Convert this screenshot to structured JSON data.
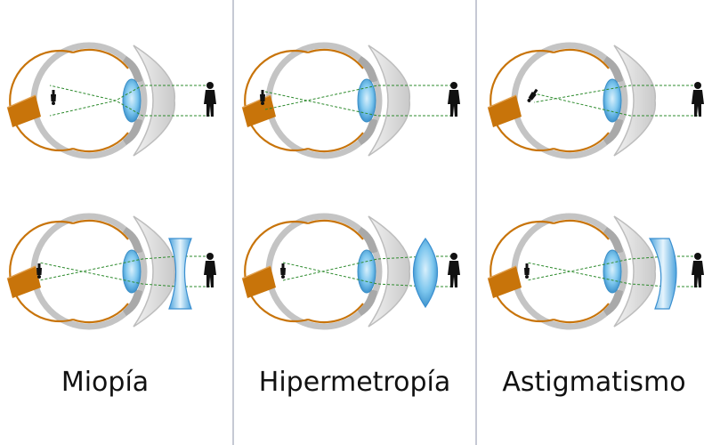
{
  "panels": [
    {
      "label": "Miopía",
      "correction": "concave"
    },
    {
      "label": "Hipermetropía",
      "correction": "convex"
    },
    {
      "label": "Astigmatismo",
      "correction": "cylindrical"
    }
  ],
  "colors": {
    "background": "#ffffff",
    "divider": "#b3b7c6",
    "sclera_outline": "#c8c8c8",
    "retina": "#c8740a",
    "optic_nerve": "#c8740a",
    "lens": "#5ab4e6",
    "corrective_lens": "#8ccbf0",
    "ray": "#2e8b2e",
    "figure": "#111111"
  }
}
